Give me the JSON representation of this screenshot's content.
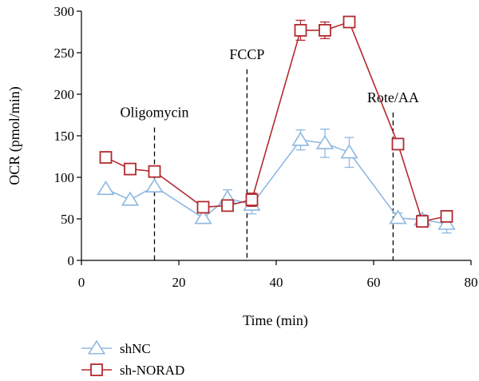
{
  "chart_data": {
    "type": "line",
    "title": "",
    "xlabel": "Time (min)",
    "ylabel": "OCR (pmol/min)",
    "xlim": [
      0,
      80
    ],
    "ylim": [
      0,
      300
    ],
    "xticks": [
      0,
      20,
      40,
      60,
      80
    ],
    "yticks": [
      0,
      50,
      100,
      150,
      200,
      250,
      300
    ],
    "legend_position": "bottom-left",
    "series": [
      {
        "name": "shNC",
        "color": "#8fb8e0",
        "marker": "triangle",
        "x": [
          5,
          10,
          15,
          25,
          30,
          35,
          45,
          50,
          55,
          65,
          70,
          75
        ],
        "y": [
          86,
          73,
          89,
          51,
          75,
          67,
          145,
          141,
          130,
          51,
          49,
          44
        ],
        "error": [
          0,
          0,
          0,
          6,
          10,
          11,
          12,
          17,
          18,
          6,
          6,
          11
        ]
      },
      {
        "name": "sh-NORAD",
        "color": "#b22a2f",
        "marker": "square",
        "x": [
          5,
          10,
          15,
          25,
          30,
          35,
          45,
          50,
          55,
          65,
          70,
          75
        ],
        "y": [
          124,
          110,
          107,
          64,
          66,
          73,
          277,
          277,
          287,
          140,
          47,
          53
        ],
        "error": [
          0,
          0,
          0,
          0,
          0,
          8,
          12,
          10,
          6,
          0,
          0,
          0
        ]
      }
    ],
    "annotations": [
      {
        "label": "Oligomycin",
        "x": 15,
        "y_top": 160
      },
      {
        "label": "FCCP",
        "x": 34,
        "y_top": 230
      },
      {
        "label": "Rote/AA",
        "x": 64,
        "y_top": 178
      }
    ]
  }
}
